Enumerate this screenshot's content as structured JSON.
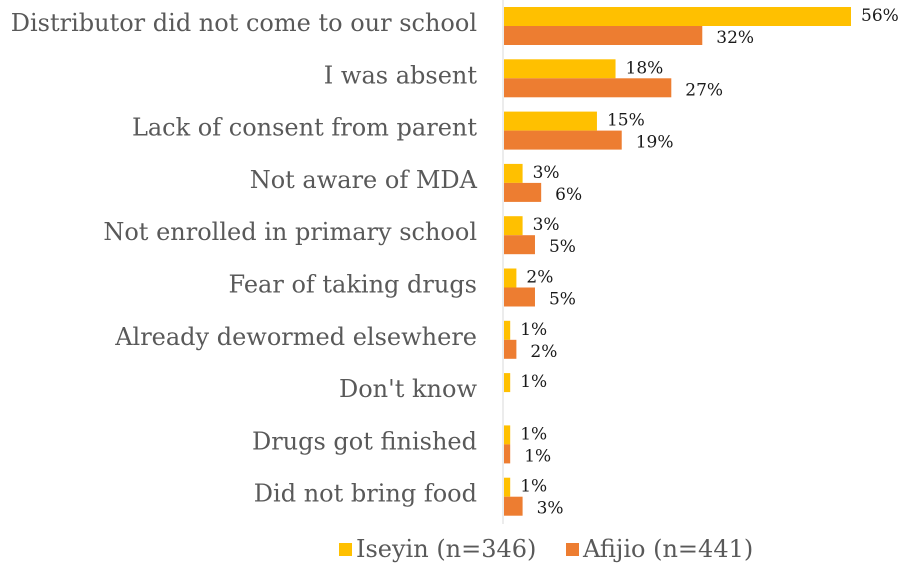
{
  "chart_data": {
    "type": "bar",
    "orientation": "horizontal",
    "categories": [
      "Distributor did not come to our school",
      "I was absent",
      "Lack of consent from parent",
      "Not aware of MDA",
      "Not enrolled in primary school",
      "Fear of taking drugs",
      "Already dewormed elsewhere",
      "Don't know",
      "Drugs got finished",
      "Did not bring food"
    ],
    "series": [
      {
        "name": "Iseyin (n=346)",
        "color": "#FFC000",
        "values": [
          56,
          18,
          15,
          3,
          3,
          2,
          1,
          1,
          1,
          1
        ],
        "labels": [
          "56%",
          "18%",
          "15%",
          "3%",
          "3%",
          "2%",
          "1%",
          "1%",
          "1%",
          "1%"
        ]
      },
      {
        "name": "Afijio (n=441)",
        "color": "#ED7D31",
        "values": [
          32,
          27,
          19,
          6,
          5,
          5,
          2,
          0,
          1,
          3
        ],
        "labels": [
          "32%",
          "27%",
          "19%",
          "6%",
          "5%",
          "5%",
          "2%",
          "",
          "1%",
          "3%"
        ]
      }
    ],
    "xlim": [
      0,
      56
    ],
    "grid": false,
    "legend": "bottom"
  }
}
